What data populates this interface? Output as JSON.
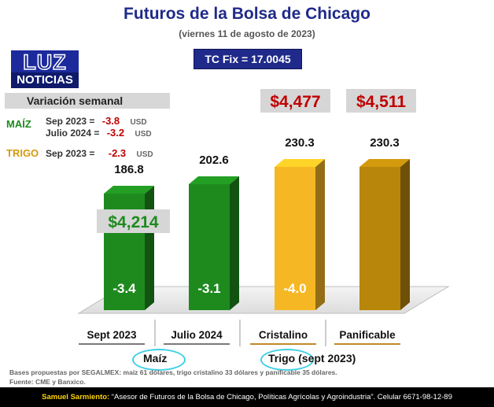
{
  "header": {
    "title": "Futuros de la Bolsa de Chicago",
    "subtitle": "(viernes 11 de agosto de 2023)",
    "tc_fix": "TC Fix = 17.0045"
  },
  "logo": {
    "line1": "LUZ",
    "line2": "NOTICIAS"
  },
  "variacion": {
    "title": "Variación semanal",
    "maiz_label": "MAÍZ",
    "trigo_label": "TRIGO",
    "rows": [
      {
        "period": "Sep 2023  =",
        "value": "-3.8",
        "unit": "USD"
      },
      {
        "period": "Julio 2024 =",
        "value": "-3.2",
        "unit": "USD"
      },
      {
        "period": "Sep 2023 =",
        "value": "-2.3",
        "unit": "USD"
      }
    ]
  },
  "chart_data": {
    "type": "bar",
    "title": "Futuros de la Bolsa de Chicago",
    "categories": [
      "Sept 2023",
      "Julio 2024",
      "Cristalino",
      "Panificable"
    ],
    "values": [
      186.8,
      202.6,
      230.3,
      230.3
    ],
    "value_labels": [
      "186.8",
      "202.6",
      "230.3",
      "230.3"
    ],
    "changes": [
      "-3.4",
      "-3.1",
      "-4.0",
      ""
    ],
    "prices_mxn": [
      "$4,214",
      "",
      "$4,477",
      "$4,511"
    ],
    "groups": [
      {
        "label": "Maíz",
        "categories": [
          "Sept 2023",
          "Julio 2024"
        ]
      },
      {
        "label": "Trigo",
        "suffix": " (sept 2023)",
        "categories": [
          "Cristalino",
          "Panificable"
        ]
      }
    ],
    "colors": [
      "#1e8a1e",
      "#1e8a1e",
      "#f5b824",
      "#b8860b"
    ],
    "price_colors": [
      "#1e8a1e",
      "#c00000",
      "#c00000"
    ],
    "ylim": [
      0,
      260
    ],
    "grid": false
  },
  "notes": {
    "line1": "Bases propuestas por SEGALMEX: maíz 61 dólares, trigo cristalino 33 dólares y panificable 35 dólares.",
    "line2": "Fuente: CME y Banxico."
  },
  "footer": {
    "author": "Samuel Sarmiento:",
    "text": " “Asesor de Futuros de la Bolsa de Chicago, Políticas Agrícolas y Agroindustria”. Celular 6671-98-12-89"
  }
}
